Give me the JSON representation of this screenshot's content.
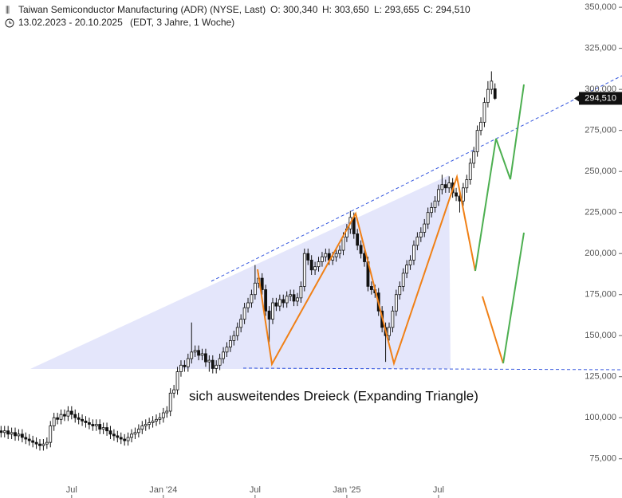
{
  "header": {
    "title": "Taiwan Semiconductor Manufacturing (ADR) (NYSE, Last)",
    "open": "O: 300,340",
    "high": "H: 303,650",
    "low": "L: 293,655",
    "close": "C: 294,510",
    "period": "13.02.2023 - 20.10.2025",
    "settings": "(EDT, 3 Jahre, 1 Woche)"
  },
  "chart_data": {
    "type": "candlestick",
    "annotation": "sich ausweitendes Dreieck (Expanding Triangle)",
    "up_color": "#ffffff",
    "down_color": "#111111",
    "outline_color": "#111111",
    "last_price": {
      "value": 294.51,
      "label": "294,510"
    },
    "xlim": [
      -0.3,
      176
    ],
    "xticks": [
      {
        "value": 20,
        "label": "Jul"
      },
      {
        "value": 46,
        "label": "Jan '24"
      },
      {
        "value": 72,
        "label": "Jul"
      },
      {
        "value": 98,
        "label": "Jan '25"
      },
      {
        "value": 124,
        "label": "Jul"
      }
    ],
    "ylim": [
      71,
      352
    ],
    "yticks": [
      {
        "value": 75,
        "label": "75,000"
      },
      {
        "value": 100,
        "label": "100,000"
      },
      {
        "value": 125,
        "label": "125,000"
      },
      {
        "value": 150,
        "label": "150,000"
      },
      {
        "value": 175,
        "label": "175,000"
      },
      {
        "value": 200,
        "label": "200,000"
      },
      {
        "value": 225,
        "label": "225,000"
      },
      {
        "value": 250,
        "label": "250,000"
      },
      {
        "value": 275,
        "label": "275,000"
      },
      {
        "value": 300,
        "label": "300,000"
      },
      {
        "value": 325,
        "label": "325,000"
      },
      {
        "value": 350,
        "label": "350,000"
      }
    ],
    "open": [
      92,
      91,
      92,
      90,
      91,
      89,
      90,
      88,
      87,
      86,
      85,
      84,
      83,
      84,
      85,
      95,
      100,
      99,
      102,
      101,
      104,
      102,
      100,
      99,
      98,
      97,
      96,
      95,
      96,
      93,
      94,
      92,
      90,
      89,
      88,
      87,
      86,
      88,
      90,
      91,
      93,
      95,
      96,
      97,
      98,
      99,
      100,
      103,
      104,
      115,
      117,
      128,
      132,
      131,
      136,
      140,
      141,
      138,
      139,
      134,
      135,
      130,
      132,
      136,
      140,
      143,
      147,
      150,
      155,
      160,
      167,
      170,
      175,
      182,
      185,
      178,
      165,
      160,
      170,
      168,
      172,
      170,
      174,
      175,
      171,
      173,
      180,
      200,
      196,
      190,
      192,
      195,
      198,
      200,
      196,
      198,
      200,
      202,
      210,
      215,
      222,
      212,
      205,
      200,
      195,
      180,
      178,
      176,
      165,
      155,
      150,
      155,
      165,
      175,
      180,
      188,
      193,
      196,
      205,
      210,
      213,
      218,
      225,
      228,
      232,
      239,
      242,
      240,
      243,
      237,
      235,
      232,
      240,
      245,
      255,
      262,
      275,
      280,
      292,
      300,
      300.34
    ],
    "high": [
      95,
      95,
      95,
      94,
      94,
      93,
      93,
      91,
      90,
      89,
      88,
      87,
      87,
      88,
      98,
      103,
      103,
      105,
      105,
      107,
      107,
      105,
      103,
      102,
      101,
      100,
      99,
      99,
      99,
      97,
      97,
      95,
      93,
      92,
      91,
      90,
      91,
      93,
      94,
      96,
      98,
      99,
      100,
      101,
      102,
      103,
      106,
      107,
      118,
      120,
      131,
      135,
      135,
      139,
      158,
      144,
      144,
      142,
      142,
      138,
      138,
      135,
      139,
      143,
      146,
      150,
      153,
      158,
      163,
      170,
      173,
      178,
      193,
      188,
      188,
      181,
      168,
      173,
      173,
      175,
      175,
      177,
      178,
      178,
      176,
      183,
      203,
      203,
      199,
      195,
      198,
      201,
      203,
      203,
      201,
      203,
      205,
      213,
      218,
      226,
      225,
      215,
      208,
      203,
      198,
      183,
      181,
      179,
      168,
      158,
      158,
      168,
      178,
      183,
      191,
      196,
      199,
      208,
      213,
      216,
      221,
      228,
      231,
      235,
      242,
      248,
      245,
      247,
      246,
      240,
      238,
      243,
      248,
      258,
      265,
      278,
      283,
      295,
      305,
      311,
      303.65
    ],
    "low": [
      88,
      88,
      87,
      87,
      86,
      86,
      85,
      84,
      83,
      82,
      81,
      80,
      80,
      81,
      82,
      92,
      96,
      96,
      98,
      98,
      99,
      97,
      96,
      95,
      94,
      93,
      92,
      92,
      90,
      90,
      89,
      87,
      86,
      85,
      84,
      83,
      83,
      85,
      87,
      88,
      90,
      92,
      93,
      94,
      95,
      96,
      97,
      100,
      101,
      112,
      114,
      125,
      128,
      128,
      133,
      137,
      135,
      135,
      131,
      128,
      127,
      127,
      129,
      133,
      137,
      140,
      144,
      147,
      152,
      157,
      164,
      167,
      172,
      179,
      175,
      162,
      146,
      157,
      165,
      165,
      167,
      167,
      171,
      168,
      168,
      170,
      177,
      193,
      187,
      187,
      189,
      192,
      195,
      193,
      193,
      195,
      197,
      199,
      207,
      212,
      209,
      202,
      197,
      192,
      177,
      175,
      173,
      162,
      152,
      134,
      147,
      152,
      162,
      172,
      177,
      185,
      190,
      193,
      202,
      207,
      210,
      215,
      222,
      225,
      229,
      236,
      237,
      237,
      234,
      232,
      225,
      229,
      237,
      242,
      252,
      259,
      272,
      277,
      289,
      297,
      293.655
    ],
    "close": [
      91,
      92,
      90,
      91,
      89,
      90,
      88,
      87,
      86,
      85,
      84,
      83,
      84,
      85,
      95,
      100,
      99,
      102,
      101,
      104,
      102,
      100,
      99,
      98,
      97,
      96,
      95,
      96,
      93,
      94,
      92,
      90,
      89,
      88,
      87,
      86,
      88,
      90,
      91,
      93,
      95,
      96,
      97,
      98,
      99,
      100,
      103,
      104,
      115,
      117,
      128,
      132,
      131,
      136,
      140,
      141,
      138,
      139,
      134,
      135,
      130,
      132,
      136,
      140,
      143,
      147,
      150,
      155,
      160,
      167,
      170,
      175,
      182,
      185,
      178,
      165,
      160,
      170,
      168,
      172,
      170,
      174,
      175,
      171,
      173,
      180,
      200,
      196,
      190,
      192,
      195,
      198,
      200,
      196,
      198,
      200,
      202,
      210,
      215,
      222,
      212,
      205,
      200,
      195,
      180,
      178,
      176,
      165,
      155,
      150,
      155,
      165,
      175,
      180,
      188,
      193,
      196,
      205,
      210,
      213,
      218,
      225,
      228,
      232,
      239,
      242,
      240,
      243,
      237,
      235,
      232,
      240,
      245,
      255,
      262,
      275,
      280,
      292,
      300,
      305,
      294.51
    ]
  }
}
